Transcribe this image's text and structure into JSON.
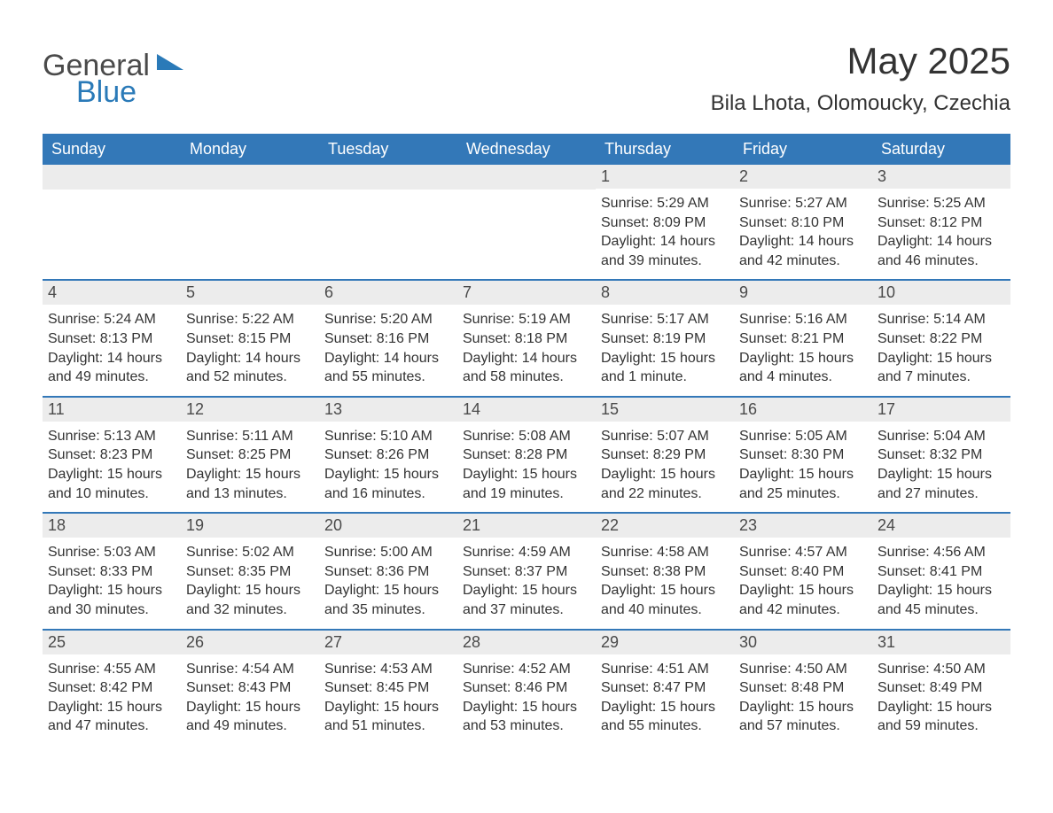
{
  "logo": {
    "text1": "General",
    "text2": "Blue",
    "accent_color": "#2a7ab8"
  },
  "title": "May 2025",
  "subtitle": "Bila Lhota, Olomoucky, Czechia",
  "colors": {
    "header_bg": "#3378b8",
    "header_text": "#ffffff",
    "daynum_bg": "#ececec",
    "text": "#333333",
    "border": "#3378b8"
  },
  "day_labels": [
    "Sunday",
    "Monday",
    "Tuesday",
    "Wednesday",
    "Thursday",
    "Friday",
    "Saturday"
  ],
  "weeks": [
    [
      {
        "n": "",
        "sunrise": "",
        "sunset": "",
        "daylight": ""
      },
      {
        "n": "",
        "sunrise": "",
        "sunset": "",
        "daylight": ""
      },
      {
        "n": "",
        "sunrise": "",
        "sunset": "",
        "daylight": ""
      },
      {
        "n": "",
        "sunrise": "",
        "sunset": "",
        "daylight": ""
      },
      {
        "n": "1",
        "sunrise": "Sunrise: 5:29 AM",
        "sunset": "Sunset: 8:09 PM",
        "daylight": "Daylight: 14 hours and 39 minutes."
      },
      {
        "n": "2",
        "sunrise": "Sunrise: 5:27 AM",
        "sunset": "Sunset: 8:10 PM",
        "daylight": "Daylight: 14 hours and 42 minutes."
      },
      {
        "n": "3",
        "sunrise": "Sunrise: 5:25 AM",
        "sunset": "Sunset: 8:12 PM",
        "daylight": "Daylight: 14 hours and 46 minutes."
      }
    ],
    [
      {
        "n": "4",
        "sunrise": "Sunrise: 5:24 AM",
        "sunset": "Sunset: 8:13 PM",
        "daylight": "Daylight: 14 hours and 49 minutes."
      },
      {
        "n": "5",
        "sunrise": "Sunrise: 5:22 AM",
        "sunset": "Sunset: 8:15 PM",
        "daylight": "Daylight: 14 hours and 52 minutes."
      },
      {
        "n": "6",
        "sunrise": "Sunrise: 5:20 AM",
        "sunset": "Sunset: 8:16 PM",
        "daylight": "Daylight: 14 hours and 55 minutes."
      },
      {
        "n": "7",
        "sunrise": "Sunrise: 5:19 AM",
        "sunset": "Sunset: 8:18 PM",
        "daylight": "Daylight: 14 hours and 58 minutes."
      },
      {
        "n": "8",
        "sunrise": "Sunrise: 5:17 AM",
        "sunset": "Sunset: 8:19 PM",
        "daylight": "Daylight: 15 hours and 1 minute."
      },
      {
        "n": "9",
        "sunrise": "Sunrise: 5:16 AM",
        "sunset": "Sunset: 8:21 PM",
        "daylight": "Daylight: 15 hours and 4 minutes."
      },
      {
        "n": "10",
        "sunrise": "Sunrise: 5:14 AM",
        "sunset": "Sunset: 8:22 PM",
        "daylight": "Daylight: 15 hours and 7 minutes."
      }
    ],
    [
      {
        "n": "11",
        "sunrise": "Sunrise: 5:13 AM",
        "sunset": "Sunset: 8:23 PM",
        "daylight": "Daylight: 15 hours and 10 minutes."
      },
      {
        "n": "12",
        "sunrise": "Sunrise: 5:11 AM",
        "sunset": "Sunset: 8:25 PM",
        "daylight": "Daylight: 15 hours and 13 minutes."
      },
      {
        "n": "13",
        "sunrise": "Sunrise: 5:10 AM",
        "sunset": "Sunset: 8:26 PM",
        "daylight": "Daylight: 15 hours and 16 minutes."
      },
      {
        "n": "14",
        "sunrise": "Sunrise: 5:08 AM",
        "sunset": "Sunset: 8:28 PM",
        "daylight": "Daylight: 15 hours and 19 minutes."
      },
      {
        "n": "15",
        "sunrise": "Sunrise: 5:07 AM",
        "sunset": "Sunset: 8:29 PM",
        "daylight": "Daylight: 15 hours and 22 minutes."
      },
      {
        "n": "16",
        "sunrise": "Sunrise: 5:05 AM",
        "sunset": "Sunset: 8:30 PM",
        "daylight": "Daylight: 15 hours and 25 minutes."
      },
      {
        "n": "17",
        "sunrise": "Sunrise: 5:04 AM",
        "sunset": "Sunset: 8:32 PM",
        "daylight": "Daylight: 15 hours and 27 minutes."
      }
    ],
    [
      {
        "n": "18",
        "sunrise": "Sunrise: 5:03 AM",
        "sunset": "Sunset: 8:33 PM",
        "daylight": "Daylight: 15 hours and 30 minutes."
      },
      {
        "n": "19",
        "sunrise": "Sunrise: 5:02 AM",
        "sunset": "Sunset: 8:35 PM",
        "daylight": "Daylight: 15 hours and 32 minutes."
      },
      {
        "n": "20",
        "sunrise": "Sunrise: 5:00 AM",
        "sunset": "Sunset: 8:36 PM",
        "daylight": "Daylight: 15 hours and 35 minutes."
      },
      {
        "n": "21",
        "sunrise": "Sunrise: 4:59 AM",
        "sunset": "Sunset: 8:37 PM",
        "daylight": "Daylight: 15 hours and 37 minutes."
      },
      {
        "n": "22",
        "sunrise": "Sunrise: 4:58 AM",
        "sunset": "Sunset: 8:38 PM",
        "daylight": "Daylight: 15 hours and 40 minutes."
      },
      {
        "n": "23",
        "sunrise": "Sunrise: 4:57 AM",
        "sunset": "Sunset: 8:40 PM",
        "daylight": "Daylight: 15 hours and 42 minutes."
      },
      {
        "n": "24",
        "sunrise": "Sunrise: 4:56 AM",
        "sunset": "Sunset: 8:41 PM",
        "daylight": "Daylight: 15 hours and 45 minutes."
      }
    ],
    [
      {
        "n": "25",
        "sunrise": "Sunrise: 4:55 AM",
        "sunset": "Sunset: 8:42 PM",
        "daylight": "Daylight: 15 hours and 47 minutes."
      },
      {
        "n": "26",
        "sunrise": "Sunrise: 4:54 AM",
        "sunset": "Sunset: 8:43 PM",
        "daylight": "Daylight: 15 hours and 49 minutes."
      },
      {
        "n": "27",
        "sunrise": "Sunrise: 4:53 AM",
        "sunset": "Sunset: 8:45 PM",
        "daylight": "Daylight: 15 hours and 51 minutes."
      },
      {
        "n": "28",
        "sunrise": "Sunrise: 4:52 AM",
        "sunset": "Sunset: 8:46 PM",
        "daylight": "Daylight: 15 hours and 53 minutes."
      },
      {
        "n": "29",
        "sunrise": "Sunrise: 4:51 AM",
        "sunset": "Sunset: 8:47 PM",
        "daylight": "Daylight: 15 hours and 55 minutes."
      },
      {
        "n": "30",
        "sunrise": "Sunrise: 4:50 AM",
        "sunset": "Sunset: 8:48 PM",
        "daylight": "Daylight: 15 hours and 57 minutes."
      },
      {
        "n": "31",
        "sunrise": "Sunrise: 4:50 AM",
        "sunset": "Sunset: 8:49 PM",
        "daylight": "Daylight: 15 hours and 59 minutes."
      }
    ]
  ]
}
